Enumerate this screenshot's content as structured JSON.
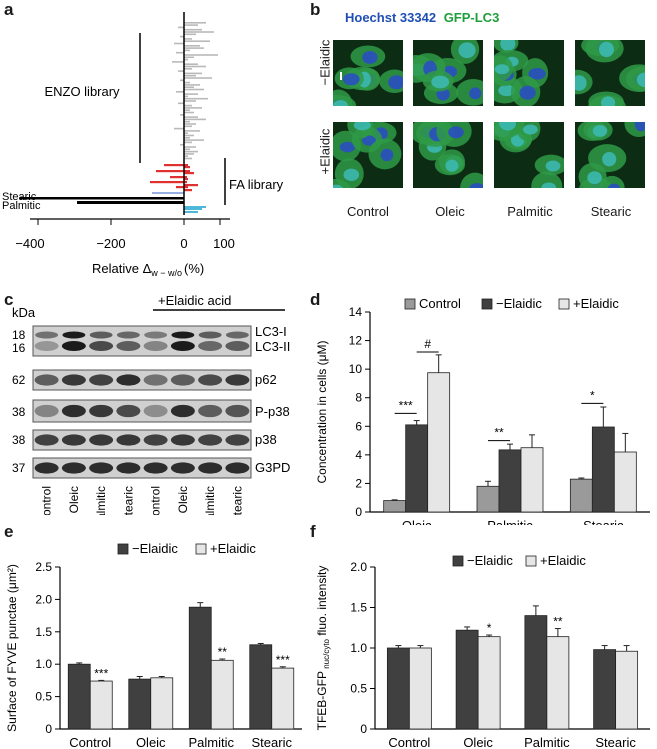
{
  "panel_labels": {
    "a": "a",
    "b": "b",
    "c": "c",
    "d": "d",
    "e": "e",
    "f": "f"
  },
  "colors": {
    "gray_bar": "#b9b9b9",
    "red_bar": "#e03030",
    "cyan_bar": "#4db8d8",
    "black_bar": "#000000",
    "dark_bar": "#404040",
    "light_bar": "#e6e6e6",
    "mid_bar": "#9a9a9a",
    "hoechst_blue": "#1f4fb5",
    "gfp_green": "#1f9e3a"
  },
  "panel_a": {
    "library_enzo": "ENZO library",
    "library_fa": "FA library",
    "bar_label_stearic": "Stearic",
    "bar_label_palmitic": "Palmitic",
    "xlabel": "Relative Δ",
    "xlabel_sub": "w − w/o",
    "xlabel_unit": "(%)",
    "ticks": [
      "−400",
      "−200",
      "0",
      "100"
    ]
  },
  "panel_b": {
    "stain_hoechst": "Hoechst 33342",
    "stain_gfp": "GFP-LC3",
    "rows": [
      "−Elaidic",
      "+Elaidic"
    ],
    "columns": [
      "Control",
      "Oleic",
      "Palmitic",
      "Stearic"
    ]
  },
  "panel_c": {
    "kda_label": "kDa",
    "treatment_label": "+Elaidic acid",
    "rows": [
      {
        "kda": [
          "18",
          "16"
        ],
        "protein": [
          "LC3-I",
          "LC3-II"
        ]
      },
      {
        "kda": [
          "62"
        ],
        "protein": [
          "p62"
        ]
      },
      {
        "kda": [
          "38"
        ],
        "protein": [
          "P-p38"
        ]
      },
      {
        "kda": [
          "38"
        ],
        "protein": [
          "p38"
        ]
      },
      {
        "kda": [
          "37"
        ],
        "protein": [
          "G3PD"
        ]
      }
    ],
    "lanes": [
      "Control",
      "Oleic",
      "Palmitic",
      "Stearic",
      "Control",
      "Oleic",
      "Palmitic",
      "Stearic"
    ]
  },
  "chart_data": [
    {
      "panel": "d",
      "type": "bar",
      "categories": [
        "Oleic",
        "Palmitic",
        "Stearic"
      ],
      "ylabel": "Concentration in cells (μM)",
      "ylim": [
        0,
        14
      ],
      "yticks": [
        "0",
        "2",
        "4",
        "6",
        "8",
        "10",
        "12",
        "14"
      ],
      "legend_position": "top",
      "series": [
        {
          "name": "Control",
          "values": [
            0.8,
            1.8,
            2.3
          ],
          "errors": [
            0.05,
            0.35,
            0.08
          ]
        },
        {
          "name": "−Elaidic",
          "values": [
            6.1,
            4.35,
            5.95
          ],
          "errors": [
            0.3,
            0.4,
            1.4
          ]
        },
        {
          "name": "+Elaidic",
          "values": [
            9.75,
            4.5,
            4.2
          ],
          "errors": [
            1.25,
            0.9,
            1.3
          ]
        }
      ],
      "significance": [
        {
          "label": "***",
          "category": "Oleic"
        },
        {
          "label": "#",
          "category": "Oleic"
        },
        {
          "label": "**",
          "category": "Palmitic"
        },
        {
          "label": "*",
          "category": "Stearic"
        }
      ]
    },
    {
      "panel": "e",
      "type": "bar",
      "categories": [
        "Control",
        "Oleic",
        "Palmitic",
        "Stearic"
      ],
      "ylabel": "Surface of FYVE punctae (μm²)",
      "ylim": [
        0,
        2.5
      ],
      "yticks": [
        "0",
        "0.5",
        "1.0",
        "1.5",
        "2.0",
        "2.5"
      ],
      "legend_position": "top",
      "series": [
        {
          "name": "−Elaidic",
          "values": [
            1.0,
            0.77,
            1.88,
            1.3
          ],
          "errors": [
            0.02,
            0.04,
            0.07,
            0.02
          ]
        },
        {
          "name": "+Elaidic",
          "values": [
            0.74,
            0.79,
            1.06,
            0.94
          ],
          "errors": [
            0.01,
            0.02,
            0.02,
            0.02
          ]
        }
      ],
      "significance": [
        "***",
        "",
        "**",
        "***"
      ]
    },
    {
      "panel": "f",
      "type": "bar",
      "categories": [
        "Control",
        "Oleic",
        "Palmitic",
        "Stearic"
      ],
      "ylabel": "TFEB-GFP",
      "ylabel_sub": "nuc/cyto",
      "ylabel_rest": "fluo. intensity",
      "ylim": [
        0,
        2.0
      ],
      "yticks": [
        "0",
        "0.5",
        "1.0",
        "1.5",
        "2.0"
      ],
      "legend_position": "top",
      "series": [
        {
          "name": "−Elaidic",
          "values": [
            1.0,
            1.22,
            1.4,
            0.98
          ],
          "errors": [
            0.03,
            0.04,
            0.12,
            0.05
          ]
        },
        {
          "name": "+Elaidic",
          "values": [
            1.0,
            1.14,
            1.14,
            0.96
          ],
          "errors": [
            0.03,
            0.02,
            0.1,
            0.07
          ]
        }
      ],
      "significance": [
        "",
        "*",
        "**",
        ""
      ]
    }
  ]
}
